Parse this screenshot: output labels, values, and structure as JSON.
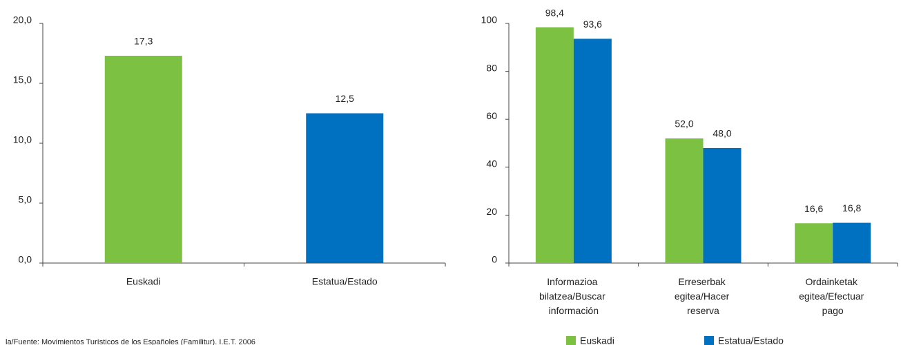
{
  "chart_data": [
    {
      "type": "bar",
      "categories": [
        "Euskadi",
        "Estatua/Estado"
      ],
      "values": [
        17.3,
        12.5
      ],
      "value_labels": [
        "17,3",
        "12,5"
      ],
      "colors": [
        "#7dc142",
        "#0070c0"
      ],
      "ylim": [
        0,
        20
      ],
      "yticks": [
        {
          "value": 0,
          "label": "0,0"
        },
        {
          "value": 5,
          "label": "5,0"
        },
        {
          "value": 10,
          "label": "10,0"
        },
        {
          "value": 15,
          "label": "15,0"
        },
        {
          "value": 20,
          "label": "20,0"
        }
      ]
    },
    {
      "type": "grouped_bar",
      "categories": [
        "Informazioa bilatzea/Buscar información",
        "Erreserbak egitea/Hacer reserva",
        "Ordainketak egitea/Efectuar pago"
      ],
      "series": [
        {
          "name": "Euskadi",
          "color": "#7dc142",
          "values": [
            98.4,
            52.0,
            16.6
          ],
          "value_labels": [
            "98,4",
            "52,0",
            "16,6"
          ]
        },
        {
          "name": "Estatua/Estado",
          "color": "#0070c0",
          "values": [
            93.6,
            48.0,
            16.8
          ],
          "value_labels": [
            "93,6",
            "48,0",
            "16,8"
          ]
        }
      ],
      "ylim": [
        0,
        100
      ],
      "yticks": [
        0,
        20,
        40,
        60,
        80,
        100
      ],
      "legend": "bottom"
    }
  ],
  "source": "la/Fuente: Movimientos Turísticos de los Españoles (Familitur). I.E.T. 2006"
}
